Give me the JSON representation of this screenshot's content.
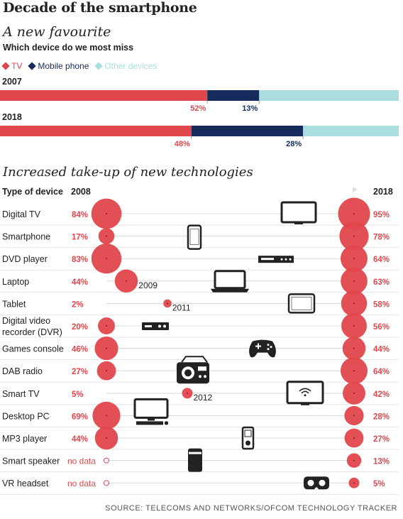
{
  "title": "Decade of the smartphone",
  "subtitle": "A new favourite",
  "question": "Which device do we most miss",
  "legend": [
    {
      "label": "TV",
      "color": "#e0474c"
    },
    {
      "label": "Mobile phone",
      "color": "#152b5c"
    },
    {
      "label": "Other devices",
      "color": "#a9dde0"
    }
  ],
  "section2_title": "Increased take-up of new technologies",
  "source": "SOURCE: TELECOMS AND NETWORKS/OFCOM TECHNOLOGY TRACKER",
  "chart_data": [
    {
      "type": "bar",
      "stacked": true,
      "orientation": "horizontal",
      "categories": [
        "2007",
        "2018"
      ],
      "series": [
        {
          "name": "TV",
          "values": [
            52,
            48
          ],
          "color": "#e0474c"
        },
        {
          "name": "Mobile phone",
          "values": [
            13,
            28
          ],
          "color": "#152b5c"
        },
        {
          "name": "Other devices",
          "values": [
            35,
            24
          ],
          "color": "#a9dde0"
        }
      ],
      "data_labels": [
        {
          "category": "2007",
          "series": "TV",
          "text": "52%"
        },
        {
          "category": "2007",
          "series": "Mobile phone",
          "text": "13%"
        },
        {
          "category": "2018",
          "series": "TV",
          "text": "48%"
        },
        {
          "category": "2018",
          "series": "Mobile phone",
          "text": "28%"
        }
      ]
    },
    {
      "type": "scatter",
      "header": {
        "device": "Type of device",
        "start": "2008",
        "end": "2018"
      },
      "rows": [
        {
          "device": "Digital TV",
          "start_label": "84%",
          "start_value": 84,
          "end_label": "95%",
          "end_value": 95,
          "icon": "tv-icon"
        },
        {
          "device": "Smartphone",
          "start_label": "17%",
          "start_value": 17,
          "end_label": "78%",
          "end_value": 78,
          "icon": "smartphone-icon"
        },
        {
          "device": "DVD player",
          "start_label": "83%",
          "start_value": 83,
          "end_label": "64%",
          "end_value": 64,
          "icon": "dvd-player-icon"
        },
        {
          "device": "Laptop",
          "start_label": "44%",
          "start_value": 44,
          "start_year": "2009",
          "end_label": "63%",
          "end_value": 63,
          "icon": "laptop-icon"
        },
        {
          "device": "Tablet",
          "start_label": "2%",
          "start_value": 2,
          "start_year": "2011",
          "end_label": "58%",
          "end_value": 58,
          "icon": "tablet-icon"
        },
        {
          "device": "Digital video recorder (DVR)",
          "device_line1": "Digital video",
          "device_line2": "recorder (DVR)",
          "start_label": "20%",
          "start_value": 20,
          "end_label": "56%",
          "end_value": 56,
          "icon": "dvr-icon"
        },
        {
          "device": "Games console",
          "start_label": "46%",
          "start_value": 46,
          "end_label": "44%",
          "end_value": 44,
          "icon": "gamepad-icon"
        },
        {
          "device": "DAB radio",
          "start_label": "27%",
          "start_value": 27,
          "end_label": "64%",
          "end_value": 64,
          "icon": "radio-icon"
        },
        {
          "device": "Smart TV",
          "start_label": "5%",
          "start_value": 5,
          "start_year": "2012",
          "end_label": "42%",
          "end_value": 42,
          "icon": "smart-tv-icon"
        },
        {
          "device": "Desktop PC",
          "start_label": "69%",
          "start_value": 69,
          "end_label": "28%",
          "end_value": 28,
          "icon": "desktop-pc-icon"
        },
        {
          "device": "MP3 player",
          "start_label": "44%",
          "start_value": 44,
          "end_label": "27%",
          "end_value": 27,
          "icon": "mp3-player-icon"
        },
        {
          "device": "Smart speaker",
          "start_label": "no data",
          "start_value": null,
          "end_label": "13%",
          "end_value": 13,
          "icon": "smart-speaker-icon"
        },
        {
          "device": "VR headset",
          "start_label": "no data",
          "start_value": null,
          "end_label": "5%",
          "end_value": 5,
          "icon": "vr-headset-icon"
        }
      ]
    }
  ]
}
